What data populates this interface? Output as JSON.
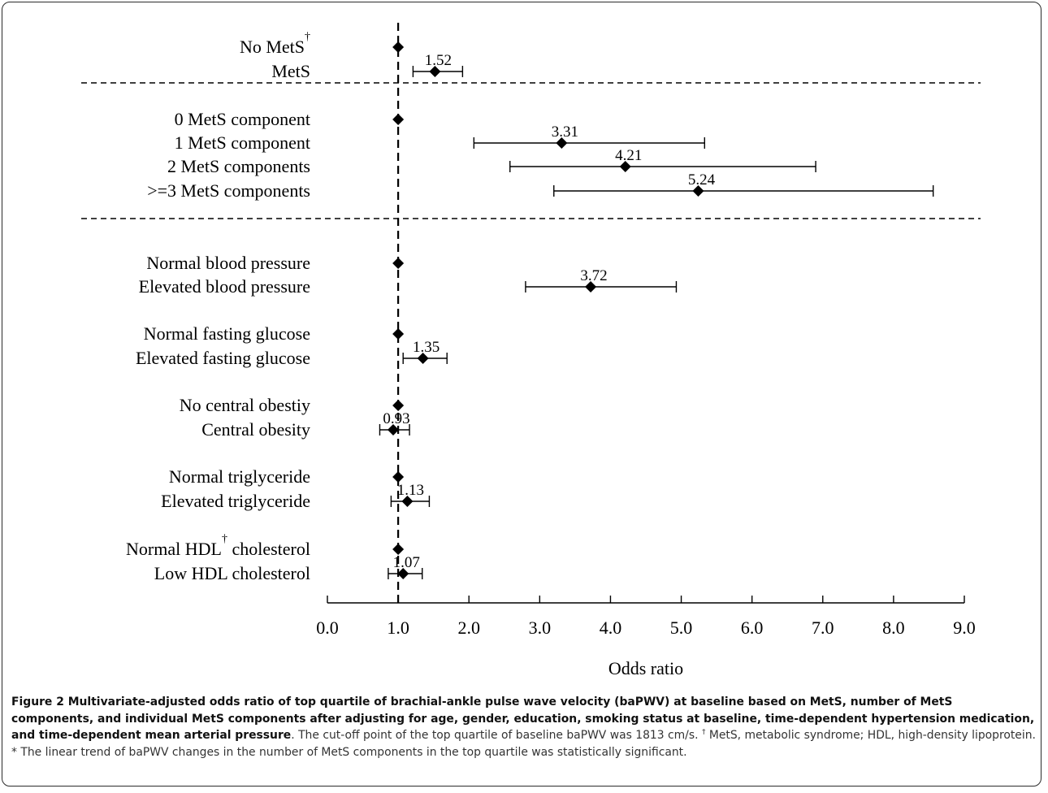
{
  "chart_data": {
    "type": "forest",
    "reference_value": 1.0,
    "xlim": [
      0,
      9
    ],
    "xticks": [
      "0.0",
      "1.0",
      "2.0",
      "3.0",
      "4.0",
      "5.0",
      "6.0",
      "7.0",
      "8.0",
      "9.0"
    ],
    "xlabel": "Odds ratio",
    "groups": [
      {
        "rows": [
          {
            "label": "No MetS",
            "sup": "†",
            "or": 1.0
          },
          {
            "label": "MetS",
            "or": 1.52,
            "ci": [
              1.21,
              1.91
            ],
            "value_label": "1.52"
          }
        ]
      },
      {
        "rows": [
          {
            "label": "0 MetS component",
            "or": 1.0
          },
          {
            "label": "1 MetS component",
            "or": 3.31,
            "ci": [
              2.07,
              5.33
            ],
            "value_label": "3.31"
          },
          {
            "label": "2 MetS components",
            "or": 4.21,
            "ci": [
              2.58,
              6.9
            ],
            "value_label": "4.21"
          },
          {
            "label": ">=3 MetS components",
            "or": 5.24,
            "ci": [
              3.2,
              8.56
            ],
            "value_label": "5.24"
          }
        ]
      },
      {
        "rows": [
          {
            "label": "Normal blood pressure",
            "or": 1.0
          },
          {
            "label": "Elevated blood pressure",
            "or": 3.72,
            "ci": [
              2.8,
              4.93
            ],
            "value_label": "3.72"
          },
          {
            "label": "Normal fasting glucose",
            "or": 1.0
          },
          {
            "label": "Elevated fasting glucose",
            "or": 1.35,
            "ci": [
              1.07,
              1.69
            ],
            "value_label": "1.35"
          },
          {
            "label": "No central obestiy",
            "or": 1.0
          },
          {
            "label": "Central obesity",
            "or": 0.93,
            "ci": [
              0.74,
              1.16
            ],
            "value_label": "0.93"
          },
          {
            "label": "Normal triglyceride",
            "or": 1.0
          },
          {
            "label": "Elevated triglyceride",
            "or": 1.13,
            "ci": [
              0.9,
              1.44
            ],
            "value_label": "1.13"
          },
          {
            "label": "Normal HDL cholesterol",
            "sup": "†",
            "or": 1.0
          },
          {
            "label": "Low HDL cholesterol",
            "or": 1.07,
            "ci": [
              0.86,
              1.34
            ],
            "value_label": "1.07"
          }
        ]
      }
    ]
  },
  "caption": {
    "title": "Figure 2 Multivariate-adjusted odds ratio of top quartile of brachial-ankle pulse wave velocity (baPWV) at baseline based on MetS, number of MetS components, and individual MetS components after adjusting for age, gender, education, smoking status at baseline, time-dependent hypertension medication, and time-dependent mean arterial pressure",
    "text_a": ". The cut-off point of the top quartile of baseline baPWV was 1813 cm/s. ",
    "dagger": "†",
    "text_b": " MetS, metabolic syndrome; HDL, high-density lipoprotein. * The linear trend of baPWV changes in the number of MetS components in the top quartile was statistically significant."
  }
}
